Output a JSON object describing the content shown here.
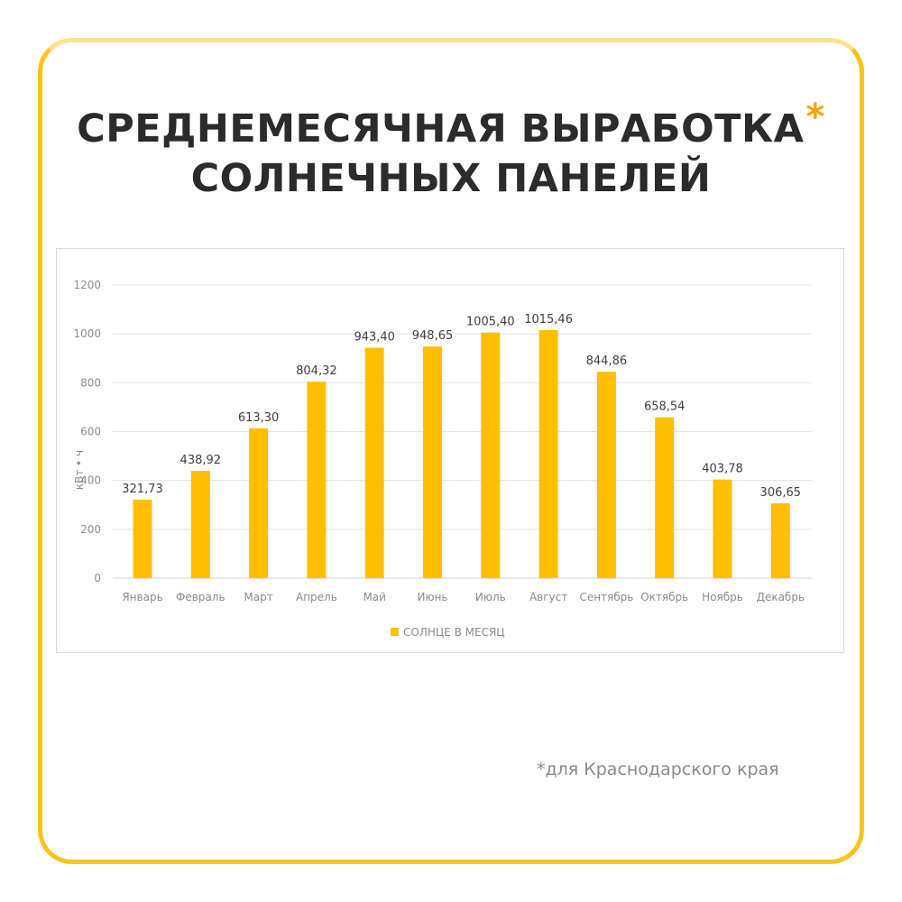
{
  "title": {
    "line1": "СРЕДНЕМЕСЯЧНАЯ ВЫРАБОТКА",
    "asterisk": "*",
    "line2": "СОЛНЕЧНЫХ ПАНЕЛЕЙ"
  },
  "footnote": "*для Краснодарского края",
  "colors": {
    "accent": "#fdc21a",
    "bar": "#fcc000",
    "title": "#2b2b2b"
  },
  "chart_data": {
    "type": "bar",
    "categories": [
      "Январь",
      "Февраль",
      "Март",
      "Апрель",
      "Май",
      "Июнь",
      "Июль",
      "Август",
      "Сентябрь",
      "Октябрь",
      "Ноябрь",
      "Декабрь"
    ],
    "values": [
      321.73,
      438.92,
      613.3,
      804.32,
      943.4,
      948.65,
      1005.4,
      1015.46,
      844.86,
      658.54,
      403.78,
      306.65
    ],
    "value_labels": [
      "321,73",
      "438,92",
      "613,30",
      "804,32",
      "943,40",
      "948,65",
      "1005,40",
      "1015,46",
      "844,86",
      "658,54",
      "403,78",
      "306,65"
    ],
    "series": [
      {
        "name": "СОЛНЦЕ В МЕСЯЦ"
      }
    ],
    "ylabel": "кВт • ч",
    "xlabel": "",
    "ylim": [
      0,
      1200
    ],
    "yticks": [
      0,
      200,
      400,
      600,
      800,
      1000,
      1200
    ],
    "grid": true,
    "legend_position": "bottom"
  }
}
